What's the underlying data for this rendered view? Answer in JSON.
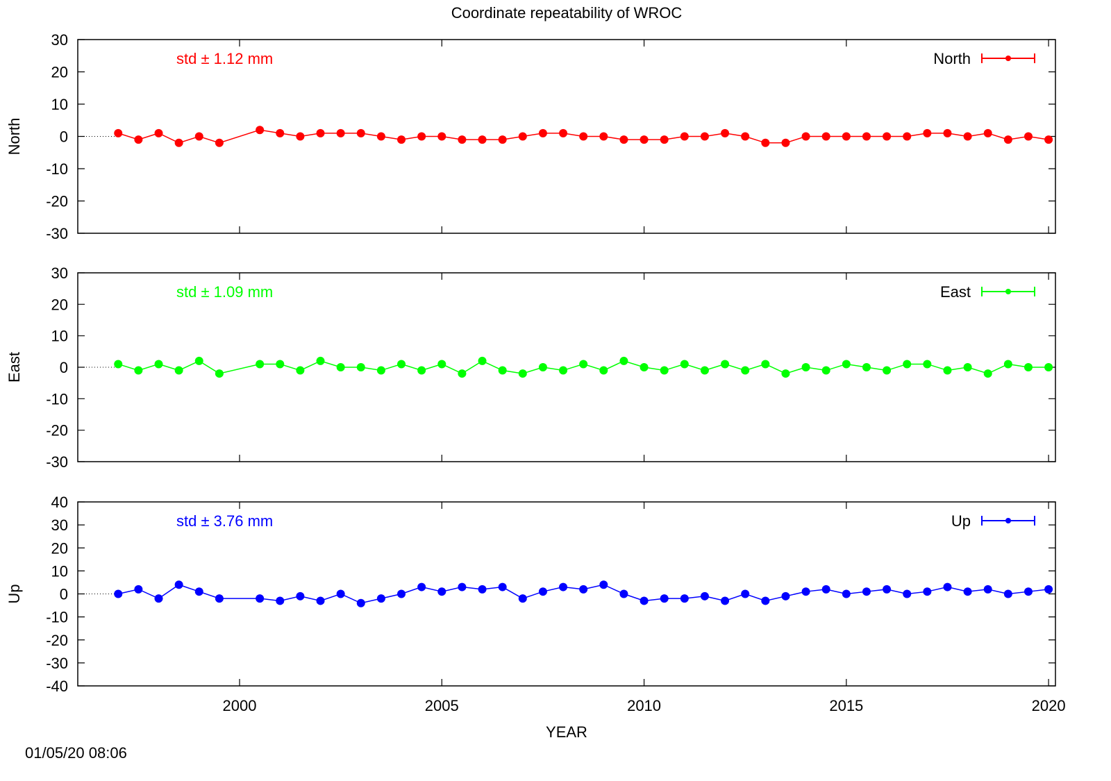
{
  "title": "Coordinate repeatability of WROC",
  "timestamp": "01/05/20 08:06",
  "chart_data": [
    {
      "type": "line",
      "ylabel": "North",
      "annotation": "std ± 1.12 mm",
      "xlim": [
        1996,
        2020.17
      ],
      "xticks": [
        2000,
        2005,
        2010,
        2015,
        2020
      ],
      "ylim": [
        -30,
        30
      ],
      "yticks": [
        -30,
        -20,
        -10,
        0,
        10,
        20,
        30
      ],
      "series": [
        {
          "name": "North",
          "color": "#ff0000",
          "x": [
            1997,
            1997.5,
            1998,
            1998.5,
            1999,
            1999.5,
            2000.5,
            2001,
            2001.5,
            2002,
            2002.5,
            2003,
            2003.5,
            2004,
            2004.5,
            2005,
            2005.5,
            2006,
            2006.5,
            2007,
            2007.5,
            2008,
            2008.5,
            2009,
            2009.5,
            2010,
            2010.5,
            2011,
            2011.5,
            2012,
            2012.5,
            2013,
            2013.5,
            2014,
            2014.5,
            2015,
            2015.5,
            2016,
            2016.5,
            2017,
            2017.5,
            2018,
            2018.5,
            2019,
            2019.5,
            2020
          ],
          "values": [
            1,
            -1,
            1,
            -2,
            0,
            -2,
            2,
            1,
            0,
            1,
            1,
            1,
            0,
            -1,
            0,
            0,
            -1,
            -1,
            -1,
            0,
            1,
            1,
            0,
            0,
            -1,
            -1,
            -1,
            0,
            0,
            1,
            0,
            -2,
            -2,
            0,
            0,
            0,
            0,
            0,
            0,
            1,
            1,
            0,
            1,
            -1,
            0,
            -1
          ]
        }
      ]
    },
    {
      "type": "line",
      "ylabel": "East",
      "annotation": "std ± 1.09 mm",
      "xlim": [
        1996,
        2020.17
      ],
      "xticks": [
        2000,
        2005,
        2010,
        2015,
        2020
      ],
      "ylim": [
        -30,
        30
      ],
      "yticks": [
        -30,
        -20,
        -10,
        0,
        10,
        20,
        30
      ],
      "series": [
        {
          "name": "East",
          "color": "#00ff00",
          "x": [
            1997,
            1997.5,
            1998,
            1998.5,
            1999,
            1999.5,
            2000.5,
            2001,
            2001.5,
            2002,
            2002.5,
            2003,
            2003.5,
            2004,
            2004.5,
            2005,
            2005.5,
            2006,
            2006.5,
            2007,
            2007.5,
            2008,
            2008.5,
            2009,
            2009.5,
            2010,
            2010.5,
            2011,
            2011.5,
            2012,
            2012.5,
            2013,
            2013.5,
            2014,
            2014.5,
            2015,
            2015.5,
            2016,
            2016.5,
            2017,
            2017.5,
            2018,
            2018.5,
            2019,
            2019.5,
            2020
          ],
          "values": [
            1,
            -1,
            1,
            -1,
            2,
            -2,
            1,
            1,
            -1,
            2,
            0,
            0,
            -1,
            1,
            -1,
            1,
            -2,
            2,
            -1,
            -2,
            0,
            -1,
            1,
            -1,
            2,
            0,
            -1,
            1,
            -1,
            1,
            -1,
            1,
            -2,
            0,
            -1,
            1,
            0,
            -1,
            1,
            1,
            -1,
            0,
            -2,
            1,
            0,
            0
          ]
        }
      ]
    },
    {
      "type": "line",
      "ylabel": "Up",
      "annotation": "std ± 3.76 mm",
      "xlabel": "YEAR",
      "xlim": [
        1996,
        2020.17
      ],
      "xticks": [
        2000,
        2005,
        2010,
        2015,
        2020
      ],
      "ylim": [
        -40,
        40
      ],
      "yticks": [
        -40,
        -30,
        -20,
        -10,
        0,
        10,
        20,
        30,
        40
      ],
      "series": [
        {
          "name": "Up",
          "color": "#0000ff",
          "x": [
            1997,
            1997.5,
            1998,
            1998.5,
            1999,
            1999.5,
            2000.5,
            2001,
            2001.5,
            2002,
            2002.5,
            2003,
            2003.5,
            2004,
            2004.5,
            2005,
            2005.5,
            2006,
            2006.5,
            2007,
            2007.5,
            2008,
            2008.5,
            2009,
            2009.5,
            2010,
            2010.5,
            2011,
            2011.5,
            2012,
            2012.5,
            2013,
            2013.5,
            2014,
            2014.5,
            2015,
            2015.5,
            2016,
            2016.5,
            2017,
            2017.5,
            2018,
            2018.5,
            2019,
            2019.5,
            2020
          ],
          "values": [
            0,
            2,
            -2,
            4,
            1,
            -2,
            -2,
            -3,
            -1,
            -3,
            0,
            -4,
            -2,
            0,
            3,
            1,
            3,
            2,
            3,
            -2,
            1,
            3,
            2,
            4,
            0,
            -3,
            -2,
            -2,
            -1,
            -3,
            0,
            -3,
            -1,
            1,
            2,
            0,
            1,
            2,
            0,
            1,
            3,
            1,
            2,
            0,
            1,
            2
          ]
        }
      ]
    }
  ]
}
